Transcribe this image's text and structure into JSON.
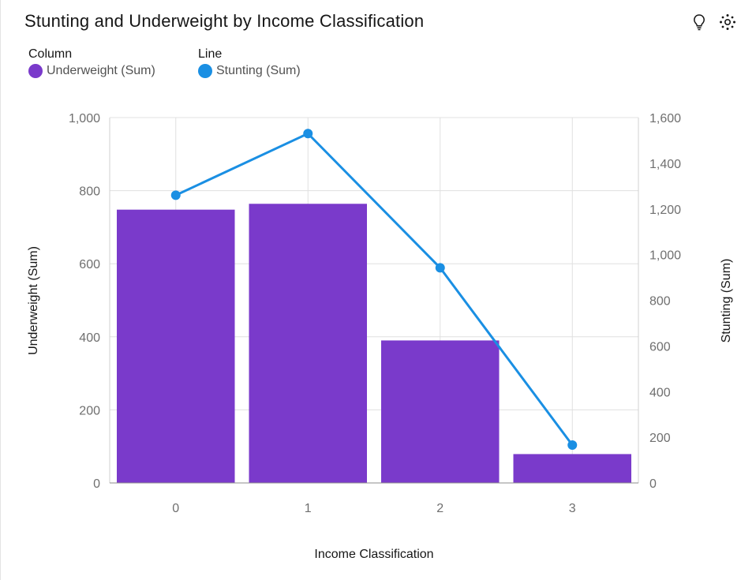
{
  "header": {
    "title": "Stunting and Underweight by Income Classification",
    "icons": [
      "lightbulb-icon",
      "settings-icon"
    ]
  },
  "legend": {
    "column": {
      "heading": "Column",
      "label": "Underweight (Sum)",
      "color": "#7a3acb"
    },
    "line": {
      "heading": "Line",
      "label": "Stunting (Sum)",
      "color": "#1a8fe3"
    }
  },
  "chart_data": {
    "type": "bar+line",
    "title": "Stunting and Underweight by Income Classification",
    "xlabel": "Income Classification",
    "ylabel_left": "Underweight (Sum)",
    "ylabel_right": "Stunting (Sum)",
    "categories": [
      "0",
      "1",
      "2",
      "3"
    ],
    "series": [
      {
        "name": "Underweight (Sum)",
        "type": "bar",
        "axis": "left",
        "values": [
          748,
          764,
          390,
          79
        ]
      },
      {
        "name": "Stunting (Sum)",
        "type": "line",
        "axis": "right",
        "values": [
          1260,
          1530,
          942,
          166
        ]
      }
    ],
    "ylim_left": [
      0,
      1000
    ],
    "ylim_right": [
      0,
      1600
    ],
    "left_ticks": [
      "0",
      "200",
      "400",
      "600",
      "800",
      "1,000"
    ],
    "left_tick_values": [
      0,
      200,
      400,
      600,
      800,
      1000
    ],
    "right_ticks": [
      "0",
      "200",
      "400",
      "600",
      "800",
      "1,000",
      "1,200",
      "1,400",
      "1,600"
    ],
    "right_tick_values": [
      0,
      200,
      400,
      600,
      800,
      1000,
      1200,
      1400,
      1600
    ],
    "grid": true
  }
}
